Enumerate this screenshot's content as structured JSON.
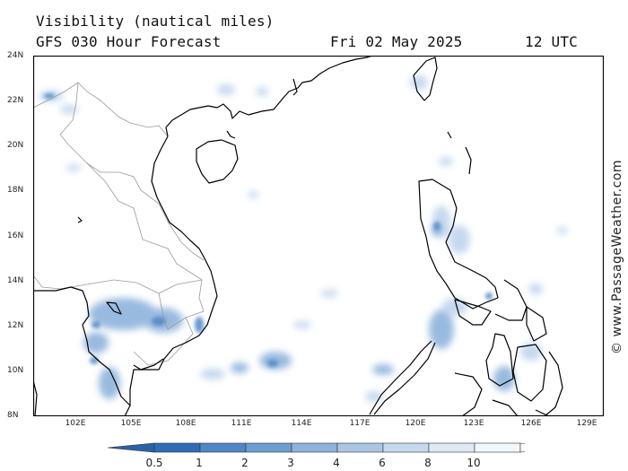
{
  "header": {
    "title": "Visibility (nautical miles)",
    "subtitle": "GFS 030 Hour Forecast",
    "date": "Fri 02 May 2025",
    "time": "12 UTC"
  },
  "credit": "© www.PassageWeather.com",
  "map": {
    "lon_range": [
      99.5,
      130.5
    ],
    "lat_range": [
      8,
      24
    ],
    "lat_ticks": [
      "24N",
      "22N",
      "20N",
      "18N",
      "16N",
      "14N",
      "12N",
      "10N",
      "8N"
    ],
    "lon_ticks": [
      "102E",
      "105E",
      "108E",
      "111E",
      "114E",
      "117E",
      "120E",
      "123E",
      "126E",
      "129E"
    ]
  },
  "colorbar": {
    "labels": [
      "0.5",
      "1",
      "2",
      "3",
      "4",
      "6",
      "8",
      "10"
    ],
    "colors": [
      "#2f6cb5",
      "#4f86c6",
      "#6e9dd2",
      "#8eb3dc",
      "#abc6e5",
      "#c6d8ee",
      "#dfe9f6",
      "#f3f7fc"
    ]
  },
  "colors": {
    "coast": "#000000",
    "border": "#9a9a9a",
    "frame": "#000000"
  }
}
